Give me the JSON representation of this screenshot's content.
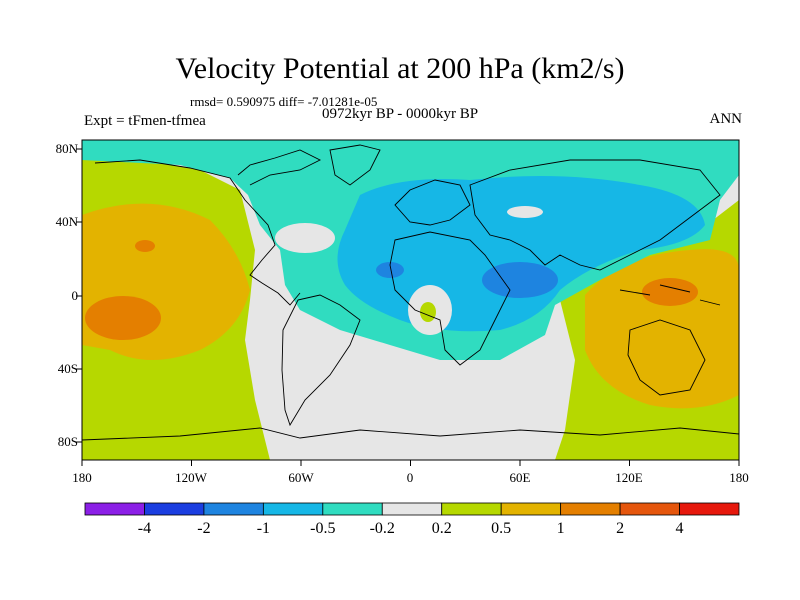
{
  "title": "Velocity Potential at 200 hPa (km2/s)",
  "stats": "rmsd= 0.590975 diff= -7.01281e-05",
  "period": "0972kyr BP - 0000kyr BP",
  "experiment": "Expt = tFmen-tfmea",
  "season": "ANN",
  "y_ticks": [
    "80N",
    "40N",
    "0",
    "40S",
    "80S"
  ],
  "x_ticks": [
    "180",
    "120W",
    "60W",
    "0",
    "60E",
    "120E",
    "180"
  ],
  "colorbar": {
    "colors": [
      "#8b1fe6",
      "#1b3ee0",
      "#1e84e0",
      "#16b7e6",
      "#30dcc0",
      "#e6e6e6",
      "#b6d800",
      "#e3b300",
      "#e47f00",
      "#e5560d",
      "#e6180c"
    ],
    "labels": [
      "-4",
      "-2",
      "-1",
      "-0.5",
      "-0.2",
      "0.2",
      "0.5",
      "1",
      "2",
      "4"
    ]
  }
}
